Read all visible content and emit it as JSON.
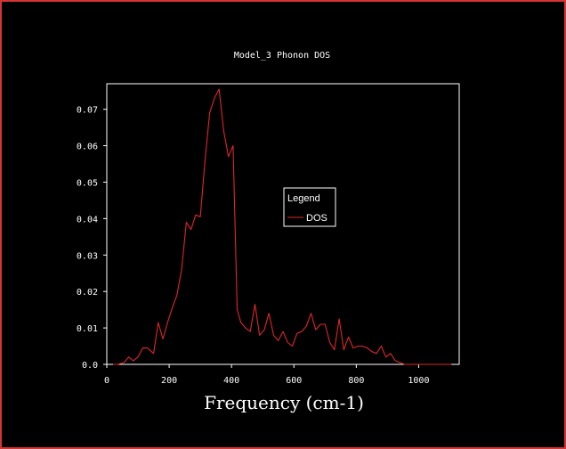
{
  "colors": {
    "background": "#000000",
    "window_border": "#d43434",
    "axes": "#ffffff",
    "series_line": "#e0262a"
  },
  "chart_data": {
    "type": "line",
    "title": "Model_3 Phonon DOS",
    "xlabel": "Frequency (cm-1)",
    "ylabel": "",
    "xlim": [
      0,
      1130
    ],
    "ylim": [
      0,
      0.077
    ],
    "xticks": [
      0,
      200,
      400,
      600,
      800,
      1000
    ],
    "xtick_labels": [
      "0",
      "200",
      "400",
      "600",
      "800",
      "1000"
    ],
    "yticks": [
      0,
      0.01,
      0.02,
      0.03,
      0.04,
      0.05,
      0.06,
      0.07
    ],
    "ytick_labels": [
      "0.0",
      "0.01",
      "0.02",
      "0.03",
      "0.04",
      "0.05",
      "0.06",
      "0.07"
    ],
    "grid": false,
    "legend": {
      "title": "Legend",
      "placement": "center-right",
      "entries": [
        "DOS"
      ]
    },
    "series": [
      {
        "name": "DOS",
        "x": [
          20,
          35,
          55,
          70,
          85,
          100,
          115,
          130,
          150,
          165,
          180,
          195,
          210,
          225,
          240,
          255,
          270,
          285,
          300,
          315,
          330,
          345,
          360,
          375,
          390,
          405,
          418,
          430,
          445,
          460,
          475,
          490,
          505,
          520,
          535,
          550,
          565,
          580,
          595,
          610,
          625,
          640,
          655,
          670,
          685,
          700,
          715,
          730,
          745,
          760,
          775,
          790,
          805,
          820,
          835,
          850,
          865,
          880,
          895,
          910,
          925,
          940,
          955,
          970,
          985,
          1000,
          1015,
          1030,
          1045,
          1060,
          1075,
          1090,
          1105
        ],
        "y": [
          0.0,
          0.0,
          0.0005,
          0.002,
          0.001,
          0.002,
          0.0045,
          0.0045,
          0.003,
          0.0115,
          0.007,
          0.0115,
          0.0155,
          0.019,
          0.026,
          0.039,
          0.037,
          0.041,
          0.0405,
          0.056,
          0.069,
          0.073,
          0.0755,
          0.064,
          0.057,
          0.06,
          0.015,
          0.0115,
          0.01,
          0.009,
          0.0165,
          0.008,
          0.0095,
          0.014,
          0.008,
          0.0065,
          0.009,
          0.006,
          0.005,
          0.0085,
          0.009,
          0.0105,
          0.014,
          0.0095,
          0.011,
          0.011,
          0.006,
          0.004,
          0.0125,
          0.004,
          0.0075,
          0.0045,
          0.005,
          0.005,
          0.0045,
          0.0035,
          0.003,
          0.005,
          0.002,
          0.003,
          0.001,
          0.0005,
          0.0,
          0.0,
          0.0,
          0.0,
          0.0,
          0.0,
          0.0,
          0.0,
          0.0,
          0.0,
          0.0
        ]
      }
    ]
  }
}
